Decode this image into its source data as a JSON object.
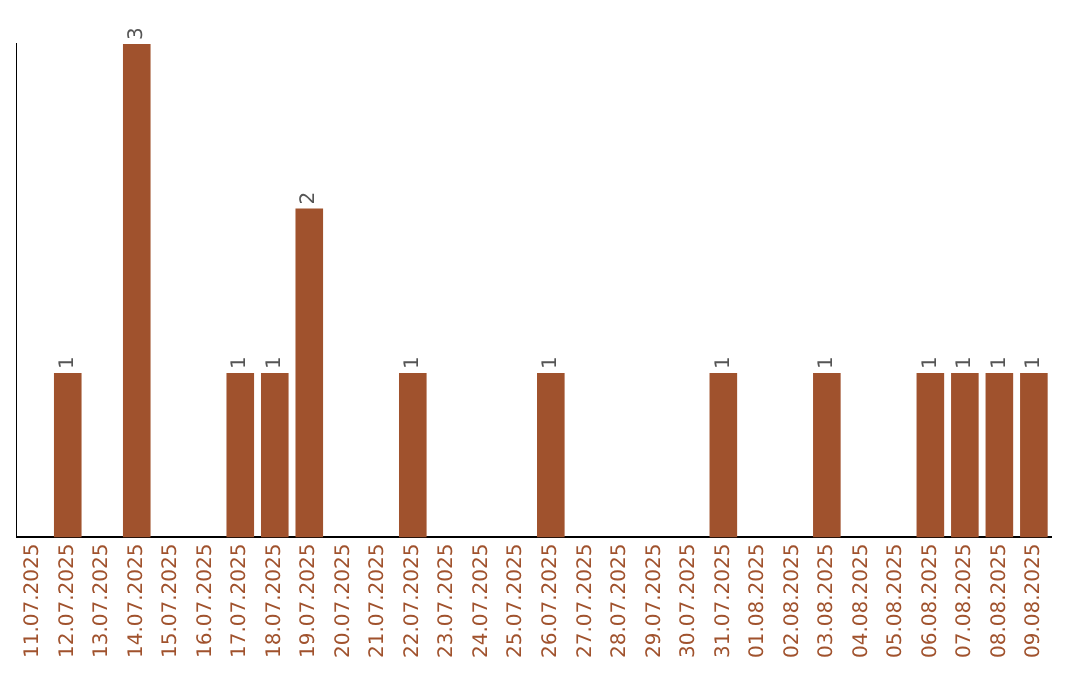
{
  "chart_data": {
    "type": "bar",
    "categories": [
      "11.07.2025",
      "12.07.2025",
      "13.07.2025",
      "14.07.2025",
      "15.07.2025",
      "16.07.2025",
      "17.07.2025",
      "18.07.2025",
      "19.07.2025",
      "20.07.2025",
      "21.07.2025",
      "22.07.2025",
      "23.07.2025",
      "24.07.2025",
      "25.07.2025",
      "26.07.2025",
      "27.07.2025",
      "28.07.2025",
      "29.07.2025",
      "30.07.2025",
      "31.07.2025",
      "01.08.2025",
      "02.08.2025",
      "03.08.2025",
      "04.08.2025",
      "05.08.2025",
      "06.08.2025",
      "07.08.2025",
      "08.08.2025",
      "09.08.2025"
    ],
    "values": [
      0,
      1,
      0,
      3,
      0,
      0,
      1,
      1,
      2,
      0,
      0,
      1,
      0,
      0,
      0,
      1,
      0,
      0,
      0,
      0,
      1,
      0,
      0,
      1,
      0,
      0,
      1,
      1,
      1,
      1
    ],
    "value_labels": [
      null,
      "1",
      null,
      "3",
      null,
      null,
      "1",
      "1",
      "2",
      null,
      null,
      "1",
      null,
      null,
      null,
      "1",
      null,
      null,
      null,
      null,
      "1",
      null,
      null,
      "1",
      null,
      null,
      "1",
      "1",
      "1",
      "1"
    ],
    "color": "#a0522d",
    "tick_labels": "x",
    "grid": false,
    "legend": false
  }
}
